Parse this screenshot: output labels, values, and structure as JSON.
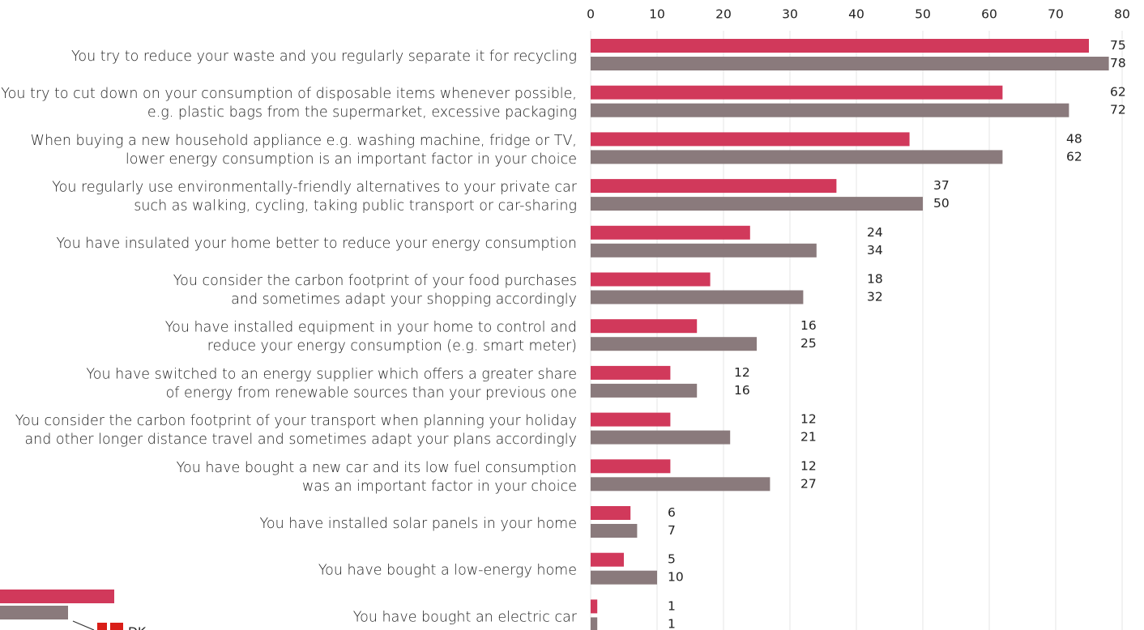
{
  "chart_data": {
    "type": "bar",
    "orientation": "horizontal",
    "categories": [
      [
        "You try to reduce your waste and you regularly separate it for recycling"
      ],
      [
        "You try to cut down on your consumption of disposable items whenever possible,",
        "e.g. plastic bags from the supermarket, excessive packaging"
      ],
      [
        "When buying a new household appliance e.g. washing machine, fridge or TV,",
        "lower energy consumption is an important factor in your choice"
      ],
      [
        "You regularly use environmentally-friendly alternatives to your private car",
        "such as walking, cycling, taking public transport or car-sharing"
      ],
      [
        "You have insulated your home better to reduce your energy consumption"
      ],
      [
        "You consider the carbon footprint of your food purchases",
        "and sometimes adapt your shopping accordingly"
      ],
      [
        "You have installed equipment in your home to control and",
        "reduce your energy consumption (e.g. smart meter)"
      ],
      [
        "You have switched to an energy supplier which offers a greater share",
        "of energy from renewable sources than your previous one"
      ],
      [
        "You consider the carbon footprint of your transport when planning your holiday",
        "and other longer distance travel and sometimes adapt your plans accordingly"
      ],
      [
        "You have bought a new car and its low fuel consumption",
        "was an important factor in your choice"
      ],
      [
        "You have installed solar panels in your home"
      ],
      [
        "You have bought a low-energy home"
      ],
      [
        "You have bought an electric car"
      ]
    ],
    "series": [
      {
        "color": "#d1395b",
        "values": [
          75,
          62,
          48,
          37,
          24,
          18,
          16,
          12,
          12,
          12,
          6,
          5,
          1
        ]
      },
      {
        "color": "#8a7a7c",
        "values": [
          78,
          72,
          62,
          50,
          34,
          32,
          25,
          16,
          21,
          27,
          7,
          10,
          1
        ]
      }
    ],
    "xlim": [
      0,
      80
    ],
    "xticks": [
      0,
      10,
      20,
      30,
      40,
      50,
      60,
      70,
      80
    ],
    "grid": true,
    "annotation": "DK"
  }
}
